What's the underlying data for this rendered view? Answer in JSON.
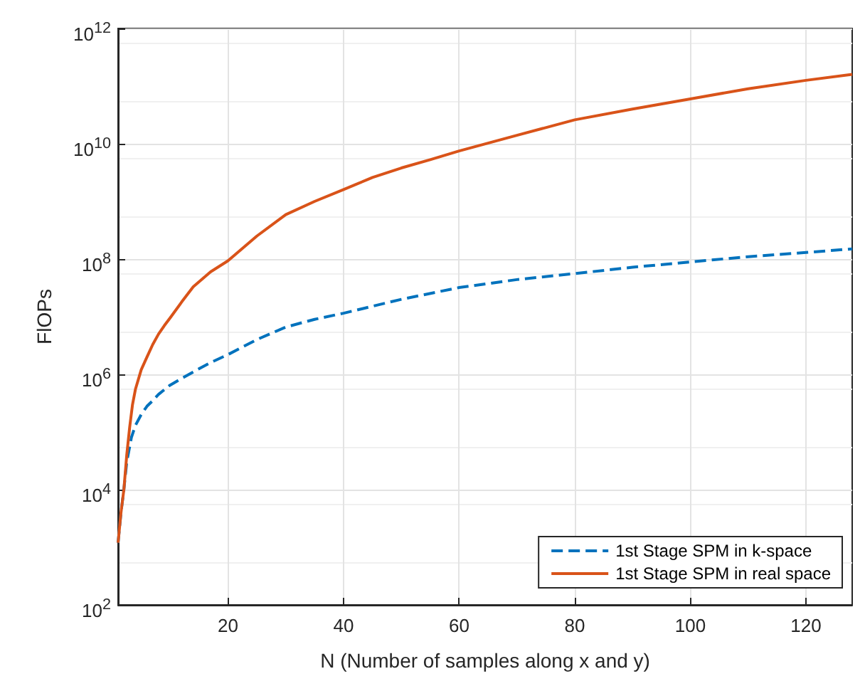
{
  "chart_data": {
    "type": "line",
    "xlabel": "N (Number of samples along x and y)",
    "ylabel": "FlOPs",
    "log": "y",
    "grid": true,
    "legend": "bottom right",
    "marker": "none",
    "xlim": [
      1,
      128
    ],
    "xticks": [
      20,
      40,
      60,
      80,
      100,
      120
    ],
    "ylim": [
      100,
      1000000000000
    ],
    "yticks": [
      {
        "value": 100,
        "label": "10$^{2}$"
      },
      {
        "value": 10000,
        "label": "10$^{4}$"
      },
      {
        "value": 1000000,
        "label": "10$^{6}$"
      },
      {
        "value": 100000000,
        "label": "10$^{8}$"
      },
      {
        "value": 10000000000,
        "label": "10$^{10}$"
      },
      {
        "value": 1000000000000,
        "label": "10$^{12}$"
      }
    ],
    "series": [
      {
        "name": "1st Stage SPM in k-space",
        "color": "#0072bd",
        "line_style": "dashed",
        "x": [
          1,
          1.5,
          2,
          2.5,
          3.3,
          4,
          5,
          6,
          7,
          8,
          10,
          12,
          14,
          17,
          20,
          25,
          30,
          35,
          40,
          50,
          60,
          70,
          80,
          90,
          100,
          110,
          120,
          128
        ],
        "values": [
          1200,
          4000,
          10000,
          30000,
          80000,
          130000,
          200000,
          280000,
          350000,
          450000,
          650000,
          850000,
          1100000,
          1600000,
          2200000,
          4000000,
          6600000,
          9000000,
          11500000,
          20000000,
          32000000,
          44000000,
          56000000,
          72000000,
          89000000,
          110000000,
          130000000,
          150000000
        ]
      },
      {
        "name": "1st Stage SPM in real space",
        "color": "#d95319",
        "line_style": "solid",
        "x": [
          1,
          1.5,
          2,
          2.5,
          3,
          3.5,
          4,
          5,
          6,
          7,
          8,
          9,
          10,
          12,
          14,
          17,
          20,
          25,
          30,
          35,
          40,
          45,
          50,
          55,
          60,
          70,
          80,
          90,
          100,
          110,
          120,
          128
        ],
        "values": [
          1200,
          4000,
          10000,
          40000,
          120000,
          300000,
          550000,
          1200000,
          2000000,
          3300000,
          5000000,
          7000000,
          9500000,
          18000000,
          33000000,
          60000000,
          93000000,
          250000000,
          590000000,
          1000000000,
          1600000000,
          2600000000,
          3800000000,
          5300000000,
          7500000000,
          14000000000,
          26000000000,
          40000000000,
          60000000000,
          90000000000,
          126000000000,
          160000000000
        ]
      }
    ]
  }
}
